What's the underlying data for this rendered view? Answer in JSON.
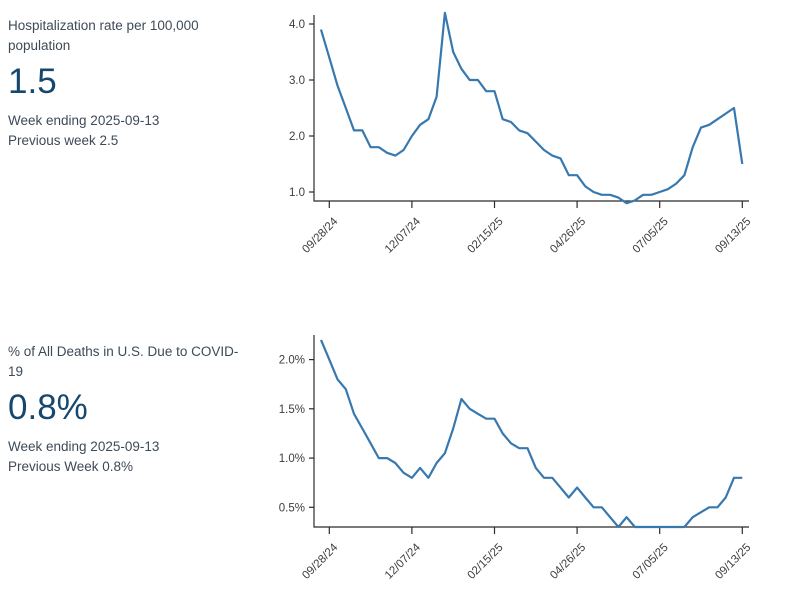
{
  "panels": [
    {
      "title": "Hospitalization rate per 100,000 population",
      "big_value": "1.5",
      "week_ending": "Week ending 2025-09-13",
      "previous": "Previous week 2.5"
    },
    {
      "title": "% of All Deaths in U.S. Due to COVID-19",
      "big_value": "0.8%",
      "week_ending": "Week ending 2025-09-13",
      "previous": "Previous Week 0.8%"
    }
  ],
  "colors": {
    "line": "#3778af",
    "big_value": "#15476f",
    "text": "#3e4a57",
    "axis": "#2b2b2b"
  },
  "chart_data": [
    {
      "type": "line",
      "title": "Hospitalization rate per 100,000 population",
      "ylabel": "",
      "xlabel": "",
      "grid": false,
      "legend": "none",
      "ylim": [
        0.84,
        4.16
      ],
      "y_ticks": [
        {
          "value": 4.0,
          "label": "4.0"
        },
        {
          "value": 3.0,
          "label": "3.0"
        },
        {
          "value": 2.0,
          "label": "2.0"
        },
        {
          "value": 1.0,
          "label": "1.0"
        }
      ],
      "x_tick_weeks": [
        1,
        11,
        21,
        31,
        41,
        51
      ],
      "x_tick_labels": [
        "09/28/24",
        "12/07/24",
        "02/15/25",
        "04/26/25",
        "07/05/25",
        "09/13/25"
      ],
      "x_dates": [
        "09/21/24",
        "09/28/24",
        "10/05/24",
        "10/12/24",
        "10/19/24",
        "10/26/24",
        "11/02/24",
        "11/09/24",
        "11/16/24",
        "11/23/24",
        "11/30/24",
        "12/07/24",
        "12/14/24",
        "12/21/24",
        "12/28/24",
        "01/04/25",
        "01/11/25",
        "01/18/25",
        "01/25/25",
        "02/01/25",
        "02/08/25",
        "02/15/25",
        "02/22/25",
        "03/01/25",
        "03/08/25",
        "03/15/25",
        "03/22/25",
        "03/29/25",
        "04/05/25",
        "04/12/25",
        "04/19/25",
        "04/26/25",
        "05/03/25",
        "05/10/25",
        "05/17/25",
        "05/24/25",
        "05/31/25",
        "06/07/25",
        "06/14/25",
        "06/21/25",
        "06/28/25",
        "07/05/25",
        "07/12/25",
        "07/19/25",
        "07/26/25",
        "08/02/25",
        "08/09/25",
        "08/16/25",
        "08/23/25",
        "08/30/25",
        "09/06/25",
        "09/13/25"
      ],
      "values": [
        3.9,
        3.4,
        2.9,
        2.5,
        2.1,
        2.1,
        1.8,
        1.8,
        1.7,
        1.65,
        1.75,
        2.0,
        2.2,
        2.3,
        2.7,
        4.2,
        3.5,
        3.2,
        3.0,
        3.0,
        2.8,
        2.8,
        2.3,
        2.25,
        2.1,
        2.05,
        1.9,
        1.75,
        1.65,
        1.6,
        1.3,
        1.3,
        1.1,
        1.0,
        0.95,
        0.95,
        0.9,
        0.8,
        0.85,
        0.95,
        0.95,
        1.0,
        1.05,
        1.15,
        1.3,
        1.8,
        2.15,
        2.2,
        2.3,
        2.4,
        2.5,
        1.5
      ],
      "line_color": "#3778af"
    },
    {
      "type": "line",
      "title": "% of All Deaths in U.S. Due to COVID-19",
      "ylabel": "",
      "xlabel": "",
      "grid": false,
      "legend": "none",
      "ylim": [
        0.3,
        2.25
      ],
      "y_ticks": [
        {
          "value": 2.0,
          "label": "2.0%"
        },
        {
          "value": 1.5,
          "label": "1.5%"
        },
        {
          "value": 1.0,
          "label": "1.0%"
        },
        {
          "value": 0.5,
          "label": "0.5%"
        }
      ],
      "x_tick_weeks": [
        1,
        11,
        21,
        31,
        41,
        51
      ],
      "x_tick_labels": [
        "09/28/24",
        "12/07/24",
        "02/15/25",
        "04/26/25",
        "07/05/25",
        "09/13/25"
      ],
      "x_dates": [
        "09/21/24",
        "09/28/24",
        "10/05/24",
        "10/12/24",
        "10/19/24",
        "10/26/24",
        "11/02/24",
        "11/09/24",
        "11/16/24",
        "11/23/24",
        "11/30/24",
        "12/07/24",
        "12/14/24",
        "12/21/24",
        "12/28/24",
        "01/04/25",
        "01/11/25",
        "01/18/25",
        "01/25/25",
        "02/01/25",
        "02/08/25",
        "02/15/25",
        "02/22/25",
        "03/01/25",
        "03/08/25",
        "03/15/25",
        "03/22/25",
        "03/29/25",
        "04/05/25",
        "04/12/25",
        "04/19/25",
        "04/26/25",
        "05/03/25",
        "05/10/25",
        "05/17/25",
        "05/24/25",
        "05/31/25",
        "06/07/25",
        "06/14/25",
        "06/21/25",
        "06/28/25",
        "07/05/25",
        "07/12/25",
        "07/19/25",
        "07/26/25",
        "08/02/25",
        "08/09/25",
        "08/16/25",
        "08/23/25",
        "08/30/25",
        "09/06/25",
        "09/13/25"
      ],
      "values": [
        2.2,
        2.0,
        1.8,
        1.7,
        1.45,
        1.3,
        1.15,
        1.0,
        1.0,
        0.95,
        0.85,
        0.8,
        0.9,
        0.8,
        0.95,
        1.05,
        1.3,
        1.6,
        1.5,
        1.45,
        1.4,
        1.4,
        1.25,
        1.15,
        1.1,
        1.1,
        0.9,
        0.8,
        0.8,
        0.7,
        0.6,
        0.7,
        0.6,
        0.5,
        0.5,
        0.4,
        0.3,
        0.4,
        0.3,
        0.3,
        0.3,
        0.3,
        0.3,
        0.3,
        0.3,
        0.4,
        0.45,
        0.5,
        0.5,
        0.6,
        0.8,
        0.8
      ],
      "line_color": "#3778af"
    }
  ]
}
